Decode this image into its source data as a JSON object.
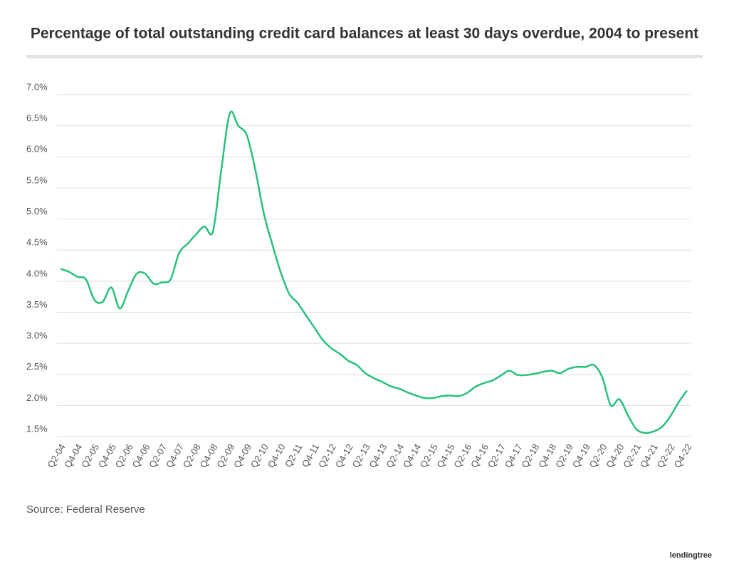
{
  "chart_data": {
    "type": "line",
    "title": "Percentage of total outstanding credit card balances at least 30 days overdue, 2004 to present",
    "source": "Source: Federal Reserve",
    "brand": "lendingtree",
    "categories": [
      "Q2-04",
      null,
      "Q4-04",
      null,
      "Q2-05",
      null,
      "Q4-05",
      null,
      "Q2-06",
      null,
      "Q4-06",
      null,
      "Q2-07",
      null,
      "Q4-07",
      null,
      "Q2-08",
      null,
      "Q4-08",
      null,
      "Q2-09",
      null,
      "Q4-09",
      null,
      "Q2-10",
      null,
      "Q4-10",
      null,
      "Q2-11",
      null,
      "Q4-11",
      null,
      "Q2-12",
      null,
      "Q4-12",
      null,
      "Q2-13",
      null,
      "Q4-13",
      null,
      "Q2-14",
      null,
      "Q4-14",
      null,
      "Q2-15",
      null,
      "Q4-15",
      null,
      "Q2-16",
      null,
      "Q4-16",
      null,
      "Q2-17",
      null,
      "Q4-17",
      null,
      "Q2-18",
      null,
      "Q4-18",
      null,
      "Q2-19",
      null,
      "Q4-19",
      null,
      "Q2-20",
      null,
      "Q4-20",
      null,
      "Q2-21",
      null,
      "Q4-21",
      null,
      "Q2-22",
      null,
      "Q4-22"
    ],
    "values": [
      4.2,
      4.15,
      4.07,
      4.03,
      3.7,
      3.67,
      3.9,
      3.56,
      3.85,
      4.12,
      4.12,
      3.96,
      3.98,
      4.03,
      4.45,
      4.6,
      4.75,
      4.88,
      4.8,
      5.8,
      6.7,
      6.5,
      6.35,
      5.8,
      5.1,
      4.6,
      4.15,
      3.8,
      3.65,
      3.45,
      3.25,
      3.05,
      2.92,
      2.83,
      2.72,
      2.65,
      2.52,
      2.44,
      2.38,
      2.31,
      2.27,
      2.21,
      2.16,
      2.12,
      2.12,
      2.15,
      2.16,
      2.15,
      2.2,
      2.3,
      2.36,
      2.4,
      2.48,
      2.56,
      2.49,
      2.49,
      2.51,
      2.54,
      2.56,
      2.52,
      2.59,
      2.62,
      2.62,
      2.65,
      2.45,
      2.0,
      2.1,
      1.85,
      1.62,
      1.56,
      1.58,
      1.65,
      1.82,
      2.05,
      2.24
    ],
    "color": "#27c07d",
    "ylim": [
      1.5,
      7.0
    ],
    "yticks": [
      {
        "value": 1.5,
        "label": "1.5%"
      },
      {
        "value": 2.0,
        "label": "2.0%"
      },
      {
        "value": 2.5,
        "label": "2.5%"
      },
      {
        "value": 3.0,
        "label": "3.0%"
      },
      {
        "value": 3.5,
        "label": "3.5%"
      },
      {
        "value": 4.0,
        "label": "4.0%"
      },
      {
        "value": 4.5,
        "label": "4.5%"
      },
      {
        "value": 5.0,
        "label": "5.0%"
      },
      {
        "value": 5.5,
        "label": "5.5%"
      },
      {
        "value": 6.0,
        "label": "6.0%"
      },
      {
        "value": 6.5,
        "label": "6.5%"
      },
      {
        "value": 7.0,
        "label": "7.0%"
      }
    ],
    "grid": true
  }
}
